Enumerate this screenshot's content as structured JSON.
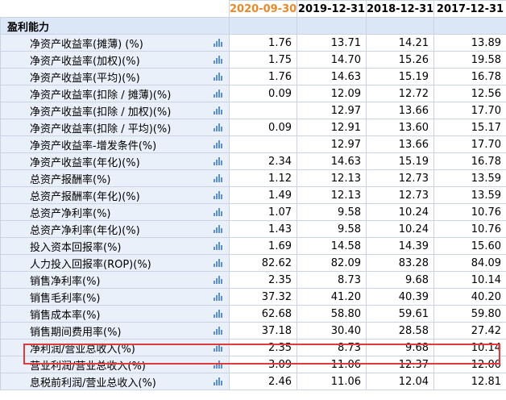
{
  "header": {
    "label": "",
    "periods": [
      "2020-09-30",
      "2019-12-31",
      "2018-12-31",
      "2017-12-31"
    ]
  },
  "section": {
    "title": "盈利能力"
  },
  "rows": [
    {
      "label": "净资产收益率(摊薄) (%)",
      "values": [
        "1.76",
        "13.71",
        "14.21",
        "13.89"
      ]
    },
    {
      "label": "净资产收益率(加权)(%)",
      "values": [
        "1.75",
        "14.70",
        "15.26",
        "19.58"
      ]
    },
    {
      "label": "净资产收益率(平均)(%)",
      "values": [
        "1.76",
        "14.63",
        "15.19",
        "16.78"
      ]
    },
    {
      "label": "净资产收益率(扣除 / 摊薄)(%)",
      "values": [
        "0.09",
        "12.09",
        "12.72",
        "12.56"
      ]
    },
    {
      "label": "净资产收益率(扣除 / 加权)(%)",
      "values": [
        "",
        "12.97",
        "13.66",
        "17.70"
      ]
    },
    {
      "label": "净资产收益率(扣除 / 平均)(%)",
      "values": [
        "0.09",
        "12.91",
        "13.60",
        "15.17"
      ]
    },
    {
      "label": "净资产收益率-增发条件(%)",
      "values": [
        "",
        "12.97",
        "13.66",
        "17.70"
      ]
    },
    {
      "label": "净资产收益率(年化)(%)",
      "values": [
        "2.34",
        "14.63",
        "15.19",
        "16.78"
      ]
    },
    {
      "label": "总资产报酬率(%)",
      "values": [
        "1.12",
        "12.13",
        "12.73",
        "13.59"
      ]
    },
    {
      "label": "总资产报酬率(年化)(%)",
      "values": [
        "1.49",
        "12.13",
        "12.73",
        "13.59"
      ]
    },
    {
      "label": "总资产净利率(%)",
      "values": [
        "1.07",
        "9.58",
        "10.24",
        "10.76"
      ]
    },
    {
      "label": "总资产净利率(年化)(%)",
      "values": [
        "1.43",
        "9.58",
        "10.24",
        "10.76"
      ]
    },
    {
      "label": "投入资本回报率(%)",
      "values": [
        "1.69",
        "14.58",
        "14.39",
        "15.60"
      ]
    },
    {
      "label": "人力投入回报率(ROP)(%)",
      "values": [
        "82.62",
        "82.09",
        "83.28",
        "84.09"
      ]
    },
    {
      "label": "销售净利率(%)",
      "values": [
        "2.35",
        "8.73",
        "9.68",
        "10.14"
      ]
    },
    {
      "label": "销售毛利率(%)",
      "values": [
        "37.32",
        "41.20",
        "40.39",
        "40.20"
      ]
    },
    {
      "label": "销售成本率(%)",
      "values": [
        "62.68",
        "58.80",
        "59.61",
        "59.80"
      ]
    },
    {
      "label": "销售期间费用率(%)",
      "values": [
        "37.18",
        "30.40",
        "28.58",
        "27.42"
      ]
    },
    {
      "label": "净利润/营业总收入(%)",
      "values": [
        "2.35",
        "8.73",
        "9.68",
        "10.14"
      ]
    },
    {
      "label": "营业利润/营业总收入(%)",
      "values": [
        "3.09",
        "11.06",
        "12.37",
        "12.00"
      ]
    },
    {
      "label": "息税前利润/营业总收入(%)",
      "values": [
        "2.46",
        "11.06",
        "12.04",
        "12.81"
      ]
    }
  ],
  "colors": {
    "highlight_period": "#e8892a",
    "section_bg": "#dbe6f6",
    "label_bg": "#eaf0f9",
    "grid": "#c9d3e3",
    "annotation_box": "#e03a3a",
    "chart_icon": "#5a8fd6"
  },
  "icons": {
    "row_chart": "bar-chart-icon"
  }
}
